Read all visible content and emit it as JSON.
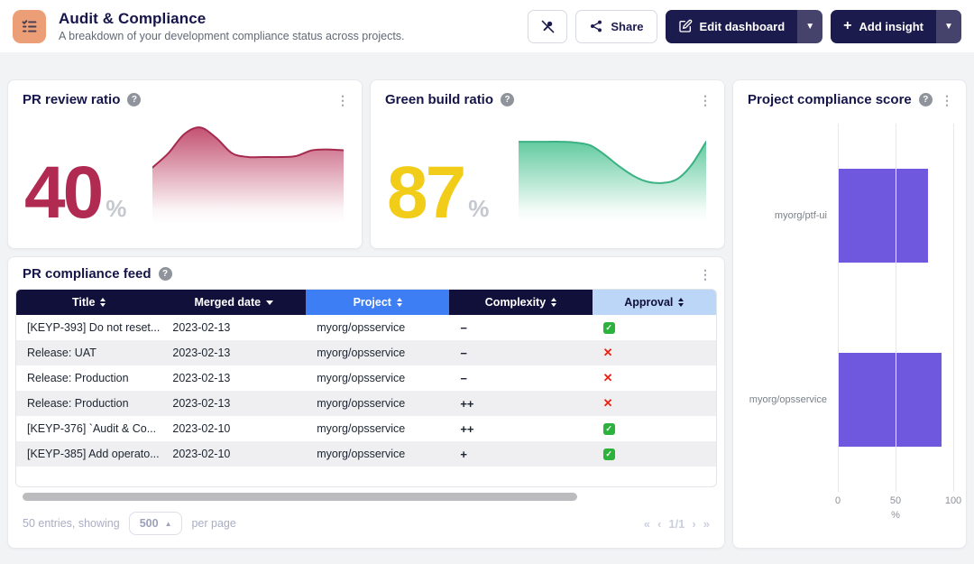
{
  "header": {
    "title": "Audit & Compliance",
    "subtitle": "A breakdown of your development compliance status across projects.",
    "buttons": {
      "share": "Share",
      "edit": "Edit dashboard",
      "add": "Add insight"
    }
  },
  "icons": {
    "help": "?",
    "kebab": "⋮",
    "caret_down": "▼",
    "caret_up_small": "▲",
    "plus": "+",
    "check": "✓",
    "cross": "✕",
    "first": "«",
    "prev": "‹",
    "next": "›",
    "last": "»"
  },
  "cards": {
    "pr_review": {
      "title": "PR review ratio",
      "value": "40",
      "unit": "%"
    },
    "green_build": {
      "title": "Green build ratio",
      "value": "87",
      "unit": "%"
    },
    "compliance": {
      "title": "Project compliance score"
    },
    "feed": {
      "title": "PR compliance feed"
    }
  },
  "chart_data": [
    {
      "type": "area",
      "name": "pr-review-trend",
      "title": "PR review ratio trend",
      "values": [
        55,
        70,
        90,
        97,
        86,
        70,
        66,
        66,
        66,
        67,
        73,
        74,
        73
      ],
      "ylim": [
        0,
        100
      ],
      "stroke": "#a62a4e",
      "fill": "#bb3a5e",
      "grid": false,
      "axes_hidden": true
    },
    {
      "type": "area",
      "name": "green-build-trend",
      "title": "Green build ratio trend",
      "values": [
        82,
        82,
        82,
        82,
        81,
        78,
        68,
        56,
        46,
        40,
        39,
        43,
        58,
        82
      ],
      "ylim": [
        0,
        100
      ],
      "stroke": "#3cb183",
      "fill": "#4ec493",
      "grid": false,
      "axes_hidden": true
    },
    {
      "type": "bar",
      "name": "project-compliance-score",
      "title": "Project compliance score",
      "orientation": "horizontal",
      "categories": [
        "myorg/ptf-ui",
        "myorg/opsservice"
      ],
      "values": [
        78,
        90
      ],
      "xlabel": "%",
      "xlim": [
        0,
        100
      ],
      "ticks": [
        "0",
        "50",
        "100"
      ],
      "grid": true,
      "bar_color": "#6f58de"
    }
  ],
  "table": {
    "columns": [
      {
        "label": "Title",
        "sort": "both",
        "bg": "navy"
      },
      {
        "label": "Merged date",
        "sort": "desc",
        "bg": "navy"
      },
      {
        "label": "Project",
        "sort": "both",
        "bg": "blue"
      },
      {
        "label": "Complexity",
        "sort": "both",
        "bg": "navy"
      },
      {
        "label": "Approval",
        "sort": "both",
        "bg": "lightblue"
      }
    ],
    "rows": [
      {
        "title": "[KEYP-393] Do not reset...",
        "merged": "2023-02-13",
        "project": "myorg/opsservice",
        "complexity": "−",
        "approval": "yes"
      },
      {
        "title": "Release: UAT",
        "merged": "2023-02-13",
        "project": "myorg/opsservice",
        "complexity": "−",
        "approval": "no"
      },
      {
        "title": "Release: Production",
        "merged": "2023-02-13",
        "project": "myorg/opsservice",
        "complexity": "−",
        "approval": "no"
      },
      {
        "title": "Release: Production",
        "merged": "2023-02-13",
        "project": "myorg/opsservice",
        "complexity": "++",
        "approval": "no"
      },
      {
        "title": "[KEYP-376] `Audit & Co...",
        "merged": "2023-02-10",
        "project": "myorg/opsservice",
        "complexity": "++",
        "approval": "yes"
      },
      {
        "title": "[KEYP-385] Add operato...",
        "merged": "2023-02-10",
        "project": "myorg/opsservice",
        "complexity": "+",
        "approval": "yes"
      }
    ],
    "footer": {
      "summary": "50 entries, showing",
      "page_size": "500",
      "per_page": "per page",
      "page_indicator": "1/1"
    }
  }
}
